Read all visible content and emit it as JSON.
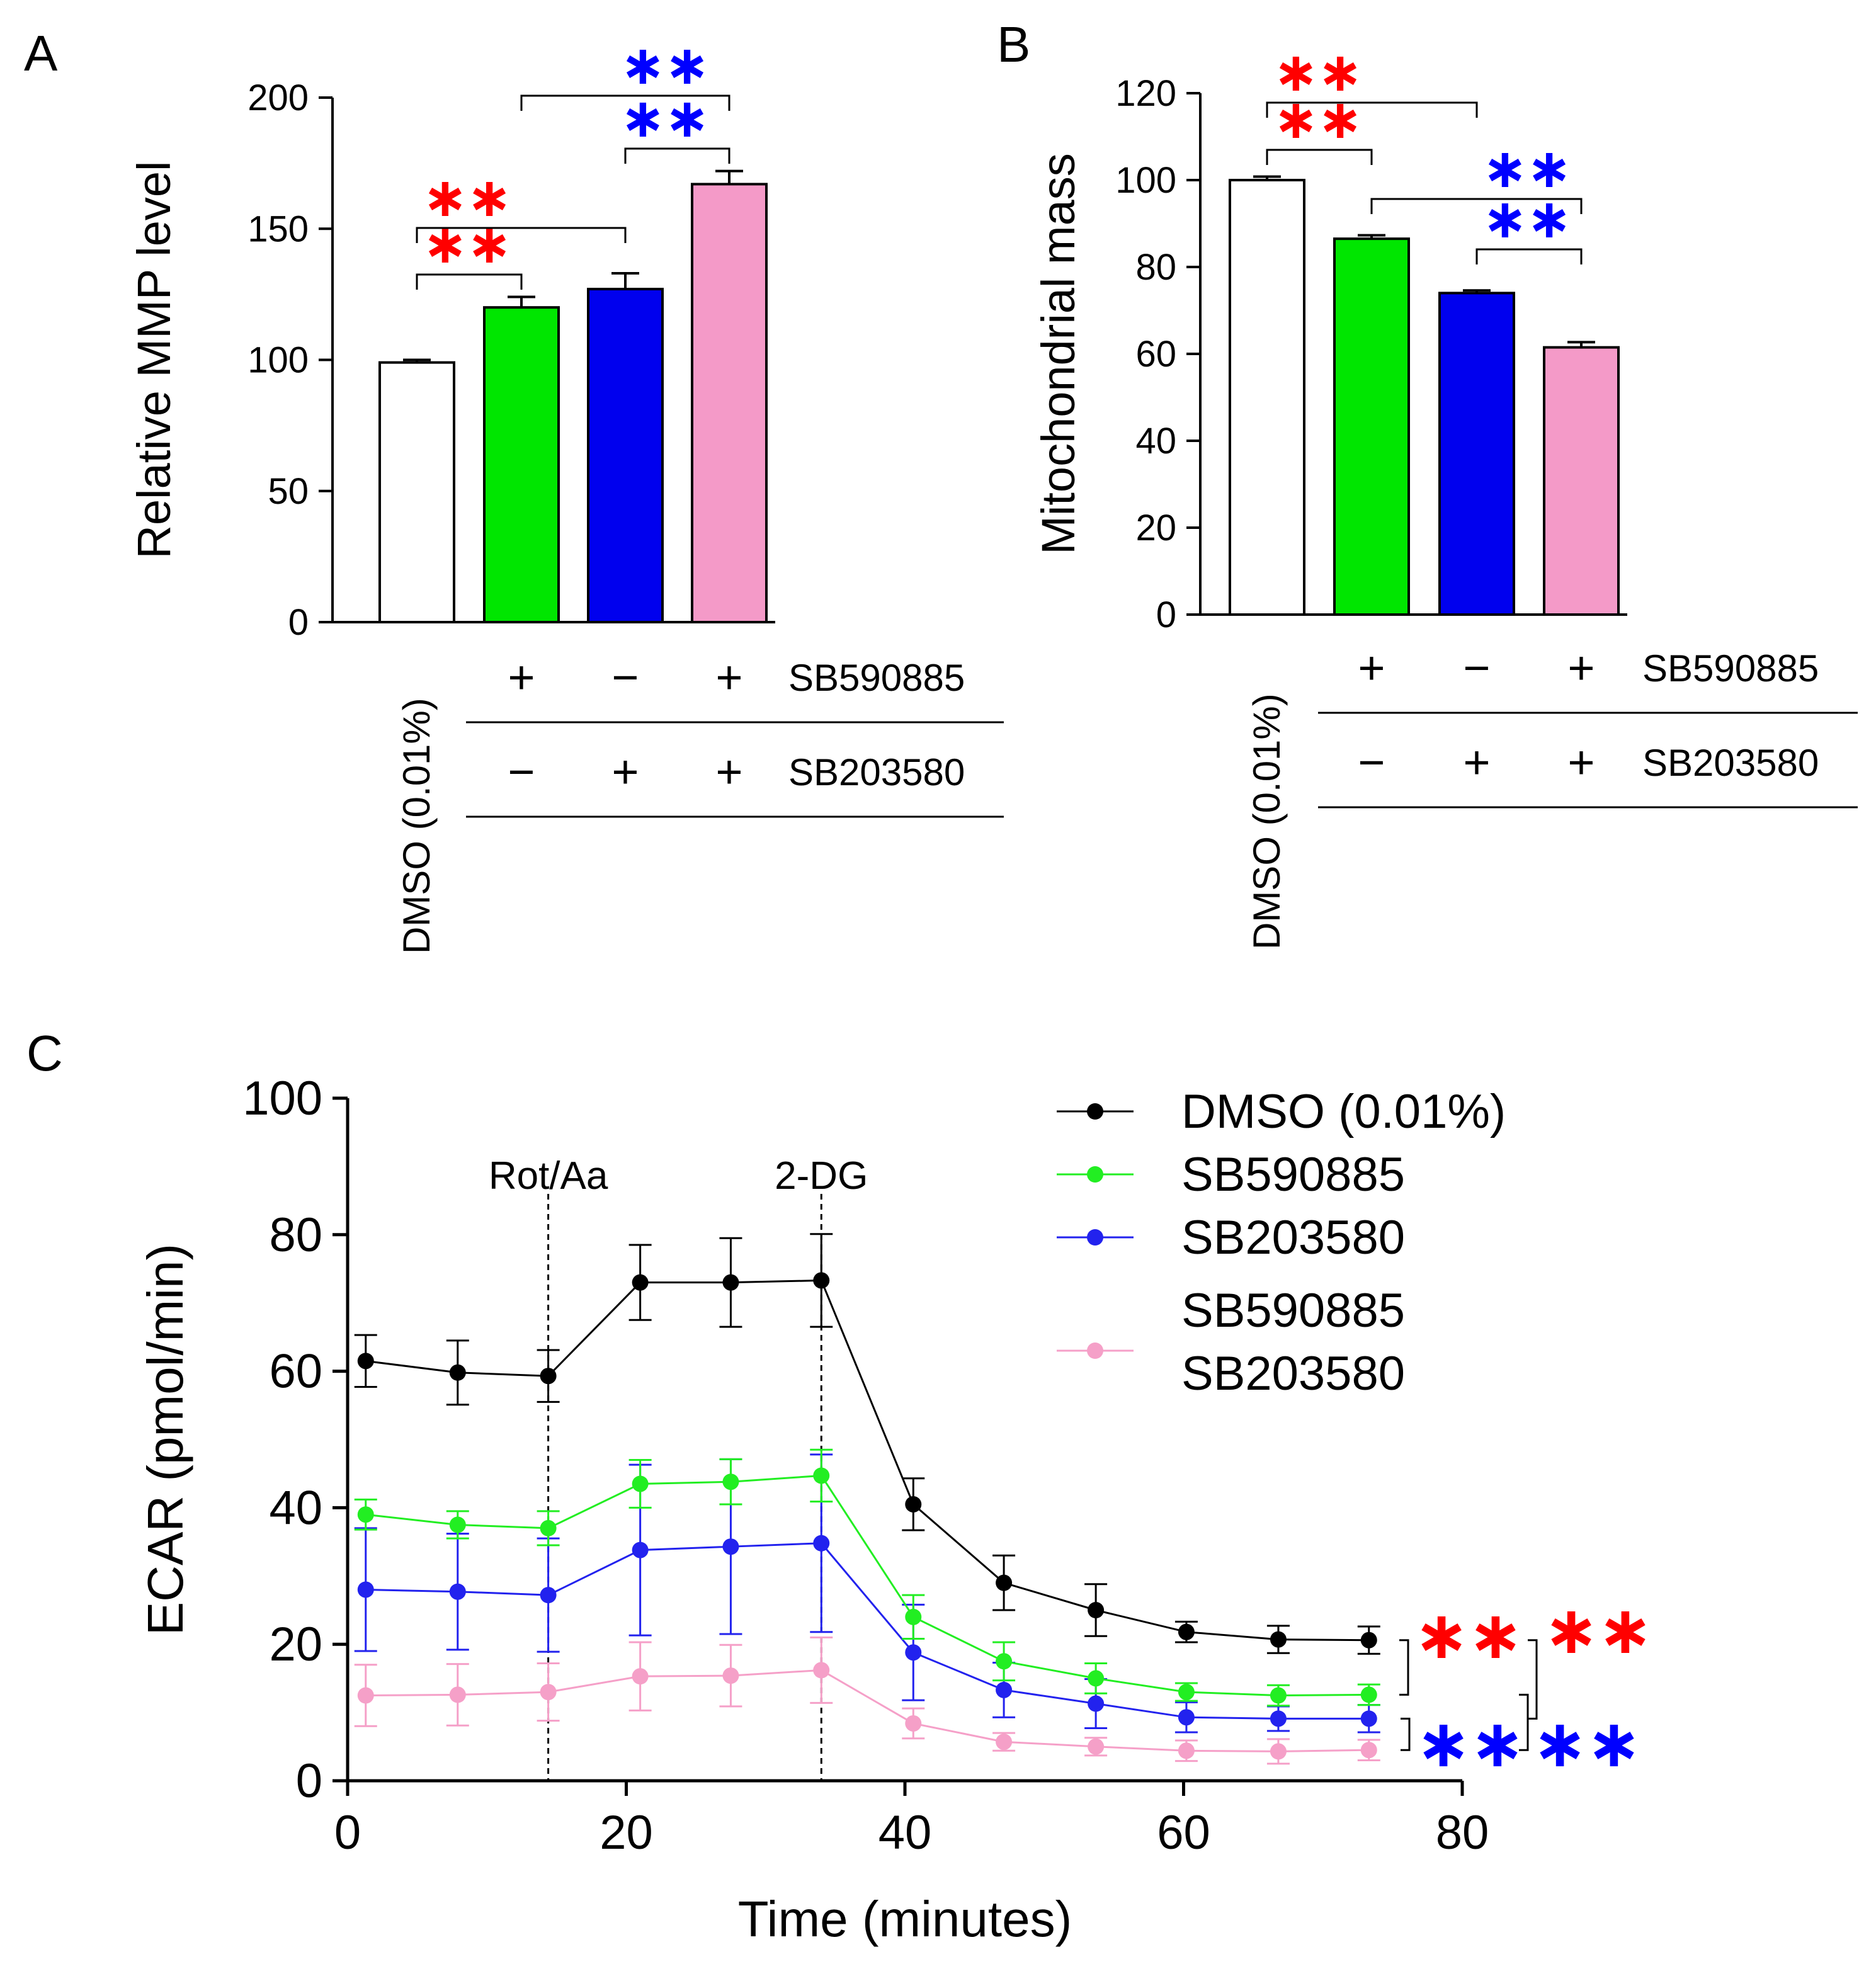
{
  "chart_data": [
    {
      "panel_label": "A",
      "type": "bar",
      "ylabel": "Relative MMP level",
      "ylim": [
        0,
        200
      ],
      "yticks": [
        0,
        50,
        100,
        150,
        200
      ],
      "categories": [
        "DMSO (0.01%)",
        "SB590885",
        "SB203580",
        "SB590885 + SB203580"
      ],
      "values": [
        99,
        120,
        127,
        167
      ],
      "errors": [
        1,
        4,
        6,
        5
      ],
      "colors": [
        "#ffffff",
        "#00e600",
        "#0000ee",
        "#f49ac8"
      ],
      "control_label": "DMSO (0.01%)",
      "treatment_rows": [
        {
          "name": "SB590885",
          "signs": [
            "+",
            "−",
            "+"
          ]
        },
        {
          "name": "SB203580",
          "signs": [
            "−",
            "+",
            "+"
          ]
        }
      ],
      "significance": [
        {
          "from": 0,
          "to": 1,
          "label": "**",
          "color": "#ff0000"
        },
        {
          "from": 0,
          "to": 2,
          "label": "**",
          "color": "#ff0000"
        },
        {
          "from": 2,
          "to": 3,
          "label": "**",
          "color": "#0000ff"
        },
        {
          "from": 1,
          "to": 3,
          "label": "**",
          "color": "#0000ff"
        }
      ]
    },
    {
      "panel_label": "B",
      "type": "bar",
      "ylabel": "Mitochondrial mass",
      "ylim": [
        0,
        120
      ],
      "yticks": [
        0,
        20,
        40,
        60,
        80,
        100,
        120
      ],
      "categories": [
        "DMSO (0.01%)",
        "SB590885",
        "SB203580",
        "SB590885 + SB203580"
      ],
      "values": [
        100,
        86.5,
        74,
        61.5
      ],
      "errors": [
        0.8,
        0.8,
        0.6,
        1.2
      ],
      "colors": [
        "#ffffff",
        "#00e600",
        "#0000ee",
        "#f49ac8"
      ],
      "control_label": "DMSO (0.01%)",
      "treatment_rows": [
        {
          "name": "SB590885",
          "signs": [
            "+",
            "−",
            "+"
          ]
        },
        {
          "name": "SB203580",
          "signs": [
            "−",
            "+",
            "+"
          ]
        }
      ],
      "significance": [
        {
          "from": 0,
          "to": 2,
          "label": "**",
          "color": "#ff0000"
        },
        {
          "from": 0,
          "to": 1,
          "label": "**",
          "color": "#ff0000"
        },
        {
          "from": 1,
          "to": 3,
          "label": "**",
          "color": "#0000ff"
        },
        {
          "from": 2,
          "to": 3,
          "label": "**",
          "color": "#0000ff"
        }
      ]
    },
    {
      "panel_label": "C",
      "type": "line",
      "xlabel": "Time (minutes)",
      "ylabel": "ECAR (pmol/min)",
      "xlim": [
        0,
        80
      ],
      "ylim": [
        0,
        100
      ],
      "xticks": [
        0,
        20,
        40,
        60,
        80
      ],
      "yticks": [
        0,
        20,
        40,
        60,
        80,
        100
      ],
      "x": [
        1.3,
        7.9,
        14.4,
        21,
        27.5,
        34,
        40.6,
        47.1,
        53.7,
        60.2,
        66.8,
        73.3
      ],
      "series": [
        {
          "name": "DMSO (0.01%)",
          "color": "#000000",
          "values": [
            61.5,
            59.8,
            59.3,
            73,
            73,
            73.3,
            40.5,
            29,
            25,
            21.8,
            20.7,
            20.6
          ],
          "errors": [
            3.8,
            4.7,
            3.8,
            5.5,
            6.5,
            6.8,
            3.8,
            4,
            3.8,
            1.5,
            2,
            2
          ]
        },
        {
          "name": "SB590885",
          "color": "#22ee22",
          "values": [
            39,
            37.5,
            37,
            43.5,
            43.8,
            44.7,
            24,
            17.5,
            15,
            13,
            12.5,
            12.6
          ],
          "errors": [
            2.2,
            2,
            2.5,
            3.5,
            3.3,
            3.8,
            3.2,
            2.8,
            2.2,
            1.3,
            1.5,
            1.5
          ]
        },
        {
          "name": "SB203580",
          "color": "#2222ee",
          "values": [
            28,
            27.7,
            27.2,
            33.8,
            34.3,
            34.8,
            18.8,
            13.3,
            11.3,
            9.3,
            9.1,
            9.1
          ],
          "errors": [
            9,
            8.5,
            8.3,
            12.5,
            12.8,
            13,
            7,
            4,
            3.6,
            2.2,
            1.8,
            2
          ]
        },
        {
          "name": "SB590885\nSB203580",
          "color": "#f5a0c8",
          "values": [
            12.5,
            12.6,
            13,
            15.3,
            15.4,
            16.2,
            8.4,
            5.7,
            5,
            4.4,
            4.3,
            4.5
          ],
          "errors": [
            4.5,
            4.5,
            4.2,
            5,
            4.5,
            4.8,
            2.2,
            1.3,
            1.3,
            1.5,
            1.8,
            1.5
          ]
        }
      ],
      "annotations": [
        {
          "x": 14.4,
          "label": "Rot/Aa"
        },
        {
          "x": 34,
          "label": "2-DG"
        }
      ],
      "legend_position": "top-right",
      "significance": [
        {
          "between": [
            0,
            1
          ],
          "label": "**",
          "color": "#ff0000"
        },
        {
          "between": [
            0,
            2
          ],
          "label": "**",
          "color": "#ff0000"
        },
        {
          "between": [
            3,
            2
          ],
          "label": "**",
          "color": "#0000ff"
        },
        {
          "between": [
            3,
            1
          ],
          "label": "**",
          "color": "#0000ff"
        }
      ]
    }
  ]
}
